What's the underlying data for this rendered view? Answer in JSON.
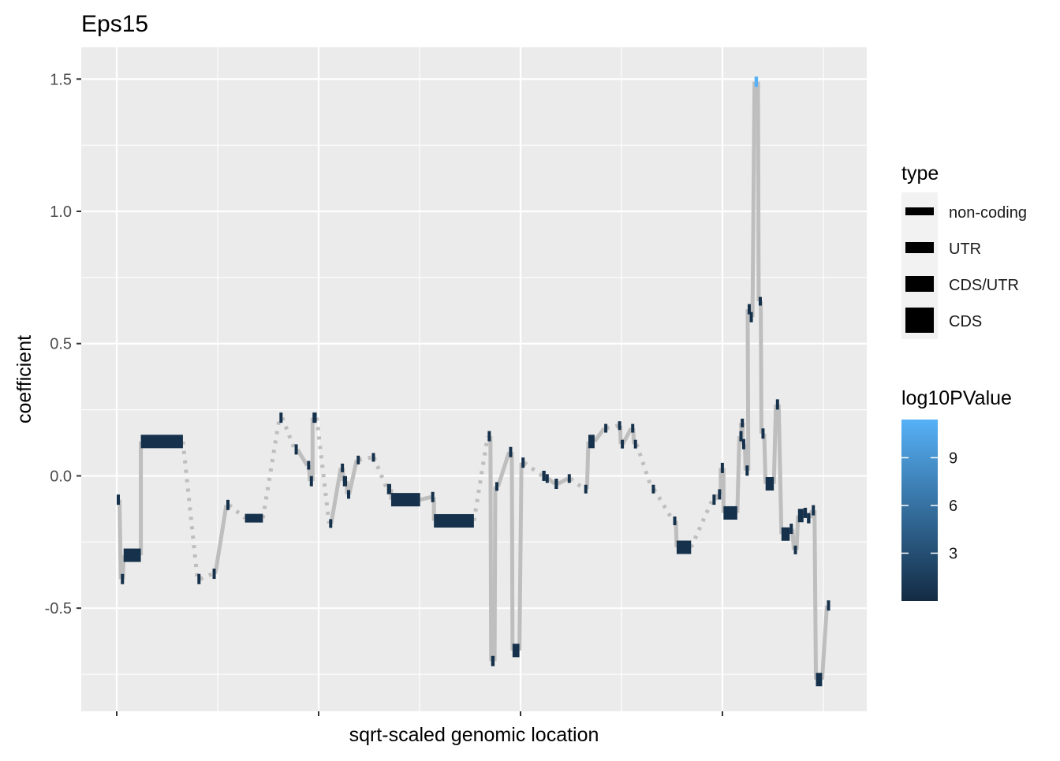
{
  "chart_data": {
    "type": "genomic-segment",
    "title": "Eps15",
    "xlabel": "sqrt-scaled genomic location",
    "ylabel": "coefficient",
    "ylim": [
      -0.89,
      1.62
    ],
    "yticks": [
      -0.5,
      0.0,
      0.5,
      1.0,
      1.5
    ],
    "ytick_labels": [
      "-0.5",
      "0.0",
      "0.5",
      "1.0",
      "1.5"
    ],
    "xlim": [
      0,
      100
    ],
    "x_major_breaks": [
      5,
      33.3,
      61.6,
      89.9
    ],
    "x_minor_breaks": [
      19.1,
      47.4,
      75.7
    ],
    "x_tick_labels": [],
    "grid": true,
    "colors": {
      "panel": "#EBEBEB",
      "grid": "#FFFFFF",
      "connector": "#BEBEBE",
      "low": "#132B43",
      "high": "#56B1F7"
    },
    "legend_type": {
      "title": "type",
      "entries": [
        "non-coding",
        "UTR",
        "CDS/UTR",
        "CDS"
      ]
    },
    "legend_color": {
      "title": "log10PValue",
      "range": [
        0,
        11.4
      ],
      "breaks": [
        3,
        6,
        9
      ],
      "break_labels": [
        "3",
        "6",
        "9"
      ]
    },
    "segments": [
      {
        "x1": 5.0,
        "x2": 5.4,
        "y": -0.09,
        "type": "CDS/UTR",
        "p": 0.5
      },
      {
        "x1": 5.6,
        "x2": 5.9,
        "y": -0.39,
        "type": "CDS/UTR",
        "p": 0.5
      },
      {
        "x1": 6.0,
        "x2": 8.5,
        "y": -0.3,
        "type": "CDS",
        "p": 0.5
      },
      {
        "x1": 8.5,
        "x2": 14.6,
        "y": 0.13,
        "type": "CDS",
        "p": 0.5
      },
      {
        "x1": 16.7,
        "x2": 17.1,
        "y": -0.39,
        "type": "CDS/UTR",
        "p": 0.5
      },
      {
        "x1": 18.9,
        "x2": 19.3,
        "y": -0.37,
        "type": "CDS/UTR",
        "p": 0.5
      },
      {
        "x1": 20.9,
        "x2": 21.3,
        "y": -0.11,
        "type": "CDS/UTR",
        "p": 0.5
      },
      {
        "x1": 23.6,
        "x2": 26.2,
        "y": -0.16,
        "type": "UTR",
        "p": 0.5
      },
      {
        "x1": 28.6,
        "x2": 29.0,
        "y": 0.22,
        "type": "CDS/UTR",
        "p": 0.5
      },
      {
        "x1": 30.8,
        "x2": 31.2,
        "y": 0.1,
        "type": "CDS/UTR",
        "p": 0.5
      },
      {
        "x1": 32.6,
        "x2": 32.9,
        "y": 0.04,
        "type": "UTR",
        "p": 0.5
      },
      {
        "x1": 33.0,
        "x2": 33.4,
        "y": -0.02,
        "type": "CDS/UTR",
        "p": 0.5
      },
      {
        "x1": 33.4,
        "x2": 34.0,
        "y": 0.22,
        "type": "CDS/UTR",
        "p": 0.5
      },
      {
        "x1": 35.8,
        "x2": 36.1,
        "y": -0.18,
        "type": "UTR",
        "p": 0.5
      },
      {
        "x1": 37.5,
        "x2": 37.8,
        "y": 0.03,
        "type": "UTR",
        "p": 0.5
      },
      {
        "x1": 37.8,
        "x2": 38.4,
        "y": -0.02,
        "type": "CDS/UTR",
        "p": 0.5
      },
      {
        "x1": 38.4,
        "x2": 38.7,
        "y": -0.07,
        "type": "UTR",
        "p": 0.5
      },
      {
        "x1": 39.8,
        "x2": 40.1,
        "y": 0.06,
        "type": "UTR",
        "p": 0.5
      },
      {
        "x1": 42.0,
        "x2": 42.3,
        "y": 0.07,
        "type": "UTR",
        "p": 0.5
      },
      {
        "x1": 44.2,
        "x2": 44.8,
        "y": -0.05,
        "type": "CDS/UTR",
        "p": 0.5
      },
      {
        "x1": 44.8,
        "x2": 49.0,
        "y": -0.09,
        "type": "CDS",
        "p": 0.5
      },
      {
        "x1": 50.6,
        "x2": 51.0,
        "y": -0.08,
        "type": "CDS/UTR",
        "p": 0.5
      },
      {
        "x1": 51.0,
        "x2": 56.8,
        "y": -0.17,
        "type": "CDS",
        "p": 0.5
      },
      {
        "x1": 58.8,
        "x2": 59.2,
        "y": 0.15,
        "type": "CDS/UTR",
        "p": 0.5
      },
      {
        "x1": 59.3,
        "x2": 59.8,
        "y": -0.7,
        "type": "CDS/UTR",
        "p": 0.5
      },
      {
        "x1": 59.9,
        "x2": 60.3,
        "y": -0.04,
        "type": "UTR",
        "p": 0.5
      },
      {
        "x1": 61.9,
        "x2": 62.3,
        "y": 0.09,
        "type": "CDS/UTR",
        "p": 0.5
      },
      {
        "x1": 62.4,
        "x2": 63.4,
        "y": -0.66,
        "type": "CDS",
        "p": 0.5
      },
      {
        "x1": 63.7,
        "x2": 64.1,
        "y": 0.05,
        "type": "CDS/UTR",
        "p": 0.5
      },
      {
        "x1": 66.7,
        "x2": 67.2,
        "y": 0.0,
        "type": "CDS/UTR",
        "p": 0.5
      },
      {
        "x1": 67.2,
        "x2": 67.6,
        "y": -0.01,
        "type": "UTR",
        "p": 0.5
      },
      {
        "x1": 68.5,
        "x2": 69.0,
        "y": -0.03,
        "type": "CDS/UTR",
        "p": 0.5
      },
      {
        "x1": 70.4,
        "x2": 70.8,
        "y": -0.01,
        "type": "UTR",
        "p": 0.5
      },
      {
        "x1": 72.8,
        "x2": 73.2,
        "y": -0.05,
        "type": "UTR",
        "p": 0.5
      },
      {
        "x1": 73.4,
        "x2": 74.3,
        "y": 0.13,
        "type": "CDS",
        "p": 0.5
      },
      {
        "x1": 75.7,
        "x2": 76.0,
        "y": 0.18,
        "type": "UTR",
        "p": 0.5
      },
      {
        "x1": 77.7,
        "x2": 78.0,
        "y": 0.19,
        "type": "UTR",
        "p": 0.5
      },
      {
        "x1": 78.1,
        "x2": 78.4,
        "y": 0.12,
        "type": "UTR",
        "p": 0.5
      },
      {
        "x1": 79.6,
        "x2": 79.9,
        "y": 0.18,
        "type": "UTR",
        "p": 0.5
      },
      {
        "x1": 80.0,
        "x2": 80.4,
        "y": 0.12,
        "type": "UTR",
        "p": 0.5
      },
      {
        "x1": 82.6,
        "x2": 82.9,
        "y": -0.05,
        "type": "UTR",
        "p": 0.5
      },
      {
        "x1": 85.7,
        "x2": 86.1,
        "y": -0.17,
        "type": "UTR",
        "p": 0.5
      },
      {
        "x1": 86.2,
        "x2": 88.3,
        "y": -0.27,
        "type": "CDS",
        "p": 0.5
      },
      {
        "x1": 91.4,
        "x2": 91.8,
        "y": -0.09,
        "type": "CDS/UTR",
        "p": 0.5
      },
      {
        "x1": 92.2,
        "x2": 92.6,
        "y": -0.07,
        "type": "CDS/UTR",
        "p": 0.5
      },
      {
        "x1": 92.6,
        "x2": 93.0,
        "y": 0.03,
        "type": "CDS/UTR",
        "p": 0.5
      },
      {
        "x1": 93.0,
        "x2": 95.0,
        "y": -0.14,
        "type": "CDS",
        "p": 0.5
      },
      {
        "x1": 95.3,
        "x2": 95.7,
        "y": 0.15,
        "type": "CDS/UTR",
        "p": 0.5
      },
      {
        "x1": 95.5,
        "x2": 95.8,
        "y": 0.2,
        "type": "UTR",
        "p": 0.5
      },
      {
        "x1": 95.7,
        "x2": 96.1,
        "y": 0.12,
        "type": "CDS/UTR",
        "p": 0.5
      },
      {
        "x1": 96.2,
        "x2": 96.6,
        "y": 0.02,
        "type": "CDS/UTR",
        "p": 0.5
      },
      {
        "x1": 96.5,
        "x2": 96.9,
        "y": 0.63,
        "type": "CDS/UTR",
        "p": 0.5
      },
      {
        "x1": 96.8,
        "x2": 97.2,
        "y": 0.6,
        "type": "CDS/UTR",
        "p": 0.5
      },
      {
        "x1": 97.5,
        "x2": 98.0,
        "y": 1.49,
        "type": "CDS/UTR",
        "p": 11.4
      },
      {
        "x1": 98.1,
        "x2": 98.4,
        "y": 0.66,
        "type": "UTR",
        "p": 0.5
      },
      {
        "x1": 98.5,
        "x2": 98.9,
        "y": 0.16,
        "type": "CDS/UTR",
        "p": 0.5
      },
      {
        "x1": 99.1,
        "x2": 100.3,
        "y": -0.03,
        "type": "CDS",
        "p": 0.5
      },
      {
        "x1": 100.6,
        "x2": 101.0,
        "y": 0.27,
        "type": "CDS/UTR",
        "p": 0.5
      },
      {
        "x1": 101.4,
        "x2": 102.6,
        "y": -0.22,
        "type": "CDS",
        "p": 0.5
      },
      {
        "x1": 102.6,
        "x2": 103.0,
        "y": -0.2,
        "type": "CDS/UTR",
        "p": 0.5
      },
      {
        "x1": 103.2,
        "x2": 103.6,
        "y": -0.28,
        "type": "UTR",
        "p": 0.5
      },
      {
        "x1": 103.8,
        "x2": 104.6,
        "y": -0.15,
        "type": "CDS",
        "p": 0.5
      },
      {
        "x1": 104.6,
        "x2": 105.1,
        "y": -0.14,
        "type": "CDS/UTR",
        "p": 0.5
      },
      {
        "x1": 105.1,
        "x2": 105.6,
        "y": -0.16,
        "type": "CDS/UTR",
        "p": 0.5
      },
      {
        "x1": 105.8,
        "x2": 106.2,
        "y": -0.13,
        "type": "CDS/UTR",
        "p": 0.5
      },
      {
        "x1": 106.4,
        "x2": 107.3,
        "y": -0.77,
        "type": "CDS",
        "p": 0.5
      },
      {
        "x1": 108.0,
        "x2": 108.4,
        "y": -0.49,
        "type": "CDS/UTR",
        "p": 0.5
      }
    ]
  }
}
